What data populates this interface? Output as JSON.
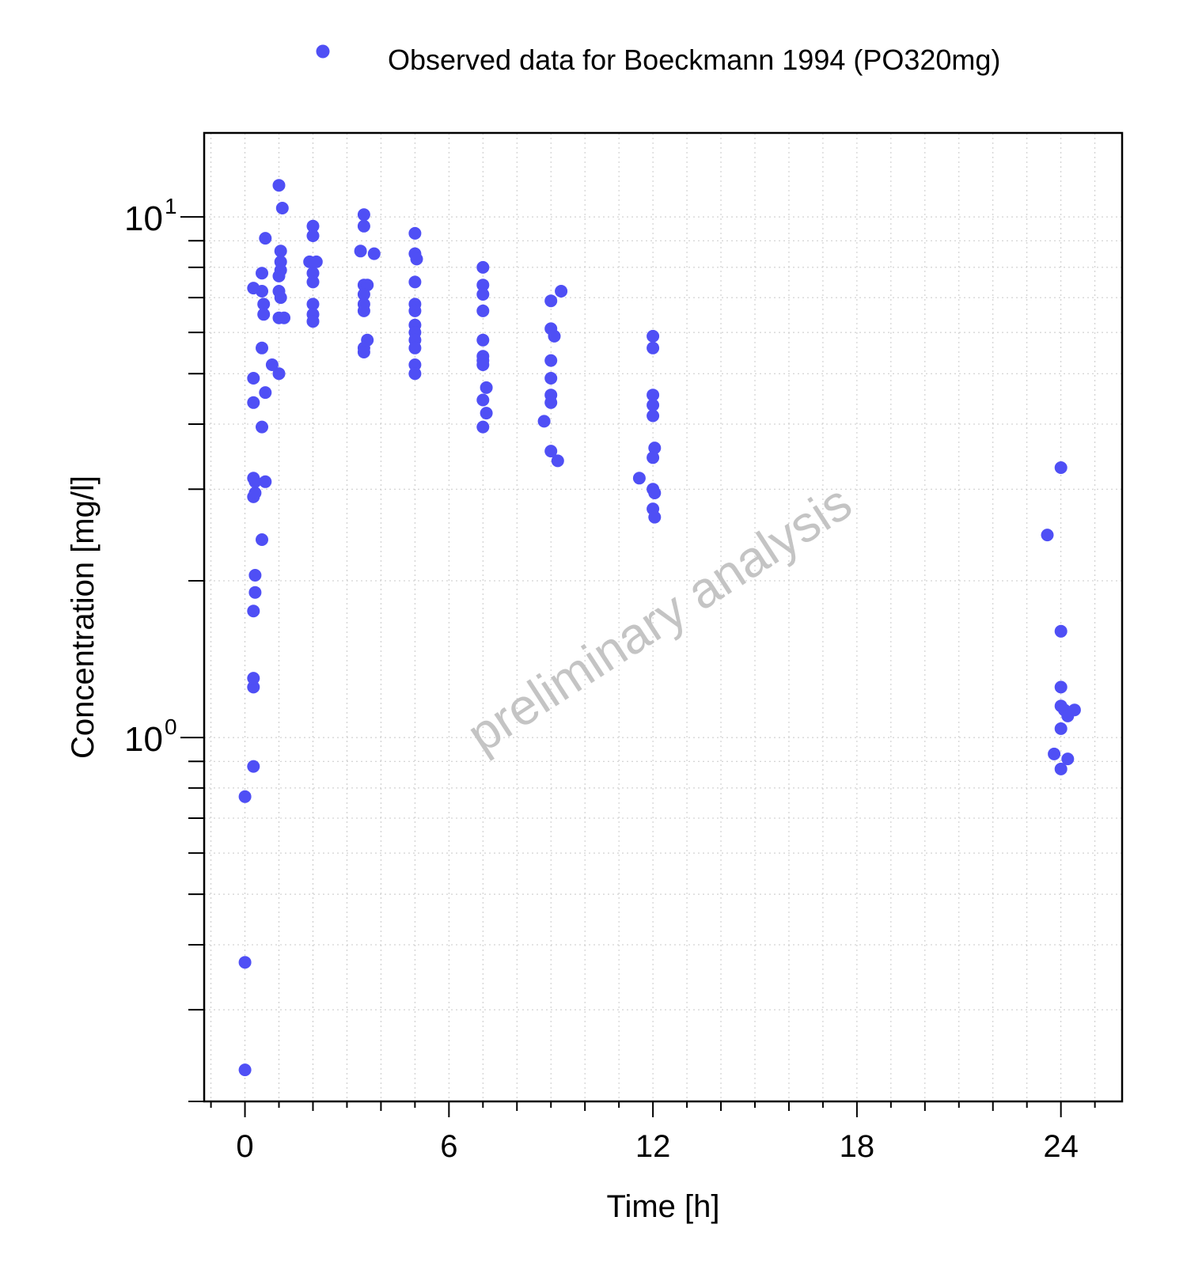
{
  "chart_data": {
    "type": "scatter",
    "title": "",
    "xlabel": "Time [h]",
    "ylabel": "Concentration [mg/l]",
    "x_ticks": [
      0,
      6,
      12,
      18,
      24
    ],
    "x_tick_labels": [
      "0",
      "6",
      "12",
      "18",
      "24"
    ],
    "xlim": [
      -1.2,
      25.8
    ],
    "ylim": [
      0.2,
      14.5
    ],
    "yscale": "log",
    "y_ticks": [
      1,
      10
    ],
    "y_tick_labels": [
      {
        "base": "10",
        "exp": "0"
      },
      {
        "base": "10",
        "exp": "1"
      }
    ],
    "grid": true,
    "legend_position": "top",
    "watermark": "preliminary analysis",
    "series": [
      {
        "name": "Observed data for Boeckmann 1994 (PO320mg)",
        "color": "#4f4ff5",
        "points": [
          [
            0,
            0.23
          ],
          [
            0,
            0.37
          ],
          [
            0,
            0.77
          ],
          [
            0.25,
            0.88
          ],
          [
            0.25,
            1.25
          ],
          [
            0.25,
            1.3
          ],
          [
            0.25,
            1.75
          ],
          [
            0.3,
            1.9
          ],
          [
            0.3,
            2.05
          ],
          [
            0.25,
            2.9
          ],
          [
            0.3,
            2.95
          ],
          [
            0.25,
            3.15
          ],
          [
            0.3,
            3.1
          ],
          [
            0.25,
            4.4
          ],
          [
            0.25,
            4.9
          ],
          [
            0.5,
            2.4
          ],
          [
            0.5,
            3.95
          ],
          [
            0.5,
            5.6
          ],
          [
            0.5,
            7.8
          ],
          [
            0.5,
            7.2
          ],
          [
            0.25,
            7.3
          ],
          [
            0.55,
            6.8
          ],
          [
            0.55,
            6.5
          ],
          [
            0.6,
            4.6
          ],
          [
            0.6,
            3.1
          ],
          [
            0.6,
            9.1
          ],
          [
            0.8,
            5.2
          ],
          [
            1.0,
            11.5
          ],
          [
            1.1,
            10.4
          ],
          [
            1.05,
            8.6
          ],
          [
            1.05,
            8.2
          ],
          [
            1.05,
            7.9
          ],
          [
            1.0,
            7.7
          ],
          [
            1.0,
            7.2
          ],
          [
            1.05,
            7.0
          ],
          [
            1.0,
            6.4
          ],
          [
            1.15,
            6.4
          ],
          [
            1.0,
            5.0
          ],
          [
            2.0,
            9.6
          ],
          [
            2.0,
            9.2
          ],
          [
            1.9,
            8.2
          ],
          [
            2.1,
            8.2
          ],
          [
            2.0,
            7.8
          ],
          [
            2.0,
            7.5
          ],
          [
            2.0,
            6.8
          ],
          [
            2.0,
            6.5
          ],
          [
            2.0,
            6.3
          ],
          [
            3.5,
            10.1
          ],
          [
            3.5,
            9.6
          ],
          [
            3.4,
            8.6
          ],
          [
            3.8,
            8.5
          ],
          [
            3.5,
            7.4
          ],
          [
            3.6,
            7.4
          ],
          [
            3.5,
            7.1
          ],
          [
            3.5,
            6.8
          ],
          [
            3.5,
            6.6
          ],
          [
            3.6,
            5.8
          ],
          [
            3.5,
            5.6
          ],
          [
            3.5,
            5.5
          ],
          [
            5.0,
            9.3
          ],
          [
            5.0,
            8.5
          ],
          [
            5.05,
            8.3
          ],
          [
            5.0,
            7.5
          ],
          [
            5.0,
            6.8
          ],
          [
            5.0,
            6.6
          ],
          [
            5.0,
            6.2
          ],
          [
            5.0,
            6.0
          ],
          [
            5.0,
            5.8
          ],
          [
            5.0,
            5.6
          ],
          [
            5.0,
            5.2
          ],
          [
            5.0,
            5.0
          ],
          [
            7.0,
            8.0
          ],
          [
            7.0,
            7.4
          ],
          [
            7.0,
            7.1
          ],
          [
            7.0,
            6.6
          ],
          [
            7.0,
            5.8
          ],
          [
            7.0,
            5.4
          ],
          [
            7.0,
            5.3
          ],
          [
            7.0,
            5.2
          ],
          [
            7.1,
            4.7
          ],
          [
            7.0,
            4.45
          ],
          [
            7.1,
            4.2
          ],
          [
            7.0,
            3.95
          ],
          [
            9.0,
            6.9
          ],
          [
            9.3,
            7.2
          ],
          [
            9.0,
            6.1
          ],
          [
            9.1,
            5.9
          ],
          [
            9.0,
            5.3
          ],
          [
            9.0,
            4.9
          ],
          [
            9.0,
            4.55
          ],
          [
            9.0,
            4.4
          ],
          [
            8.8,
            4.05
          ],
          [
            9.0,
            3.55
          ],
          [
            9.2,
            3.4
          ],
          [
            11.6,
            3.15
          ],
          [
            12.0,
            5.9
          ],
          [
            12.0,
            5.6
          ],
          [
            12.0,
            4.55
          ],
          [
            12.0,
            4.35
          ],
          [
            12.0,
            4.15
          ],
          [
            12.05,
            3.6
          ],
          [
            12.0,
            3.45
          ],
          [
            12.0,
            3.0
          ],
          [
            12.05,
            2.95
          ],
          [
            12.0,
            2.75
          ],
          [
            12.05,
            2.65
          ],
          [
            23.6,
            2.45
          ],
          [
            24.0,
            3.3
          ],
          [
            24.0,
            1.6
          ],
          [
            24.0,
            1.25
          ],
          [
            24.0,
            1.15
          ],
          [
            24.1,
            1.13
          ],
          [
            24.2,
            1.1
          ],
          [
            24.4,
            1.13
          ],
          [
            24.0,
            1.04
          ],
          [
            23.8,
            0.93
          ],
          [
            24.0,
            0.87
          ],
          [
            24.2,
            0.91
          ]
        ]
      }
    ]
  }
}
